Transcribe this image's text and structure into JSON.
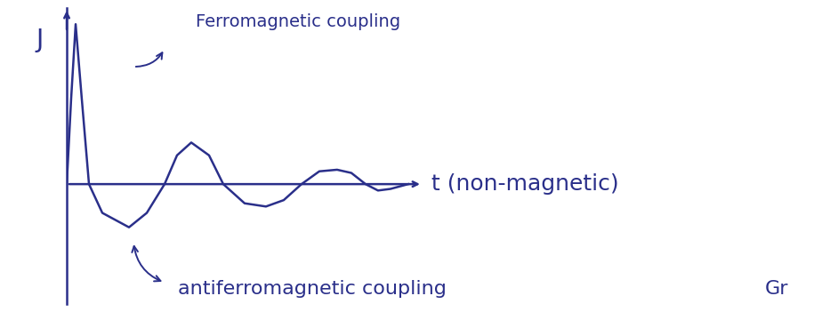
{
  "chart_data": {
    "type": "line",
    "y_label": "J",
    "x_label": "t (non-magnetic)",
    "annotations": [
      "Ferromagnetic coupling",
      "antiferromagnetic coupling",
      "Gr"
    ],
    "x": [
      0,
      0.125,
      0.25,
      0.42,
      0.625,
      1.0,
      1.75,
      2.25,
      2.75,
      3.1,
      3.5,
      4.0,
      4.4,
      5.0,
      5.6,
      6.1,
      6.6,
      7.1,
      7.6,
      8.0,
      8.4,
      8.75,
      9.1,
      9.6
    ],
    "values": [
      0,
      0.54,
      1.0,
      0.54,
      0,
      -0.18,
      -0.27,
      -0.18,
      0,
      0.18,
      0.26,
      0.18,
      0,
      -0.12,
      -0.14,
      -0.1,
      0,
      0.08,
      0.09,
      0.07,
      0,
      -0.04,
      -0.03,
      0
    ],
    "xlim": [
      0,
      10
    ],
    "ylim": [
      -0.75,
      1.1
    ],
    "color": "#2a2f8a",
    "tick_labels": false,
    "grid": false
  }
}
